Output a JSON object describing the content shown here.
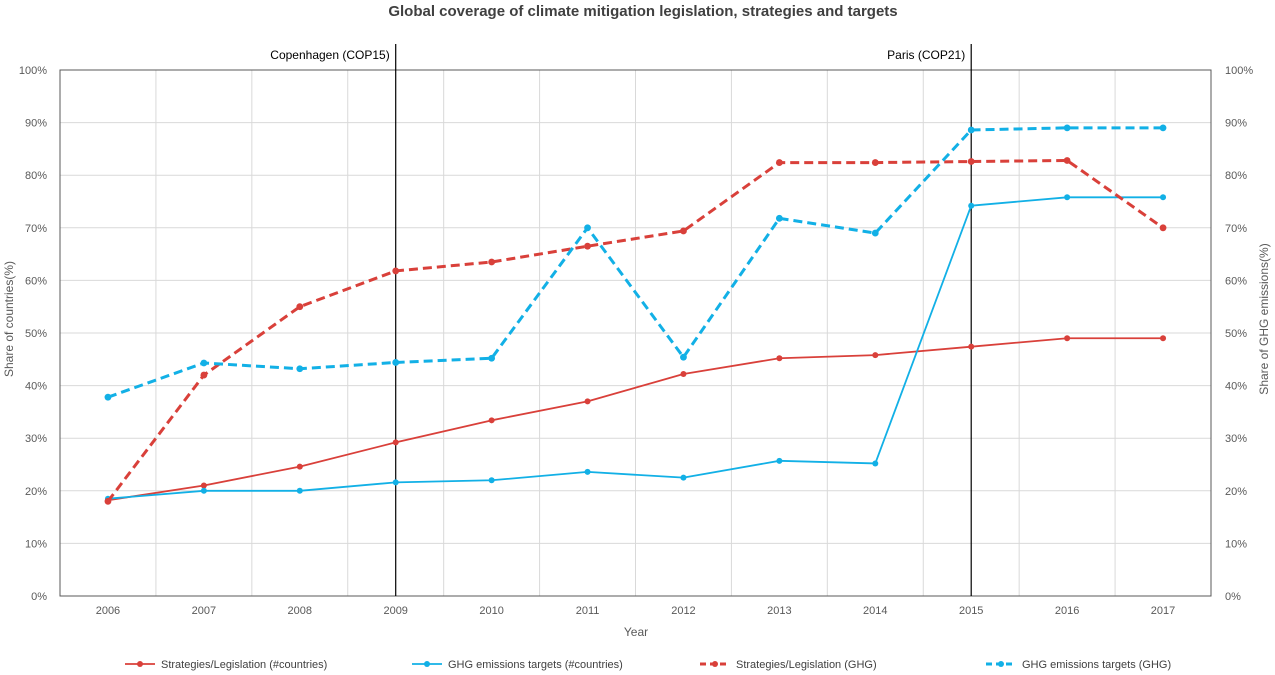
{
  "chart_data": {
    "type": "line",
    "title": "Global coverage of climate mitigation legislation, strategies and targets",
    "xlabel": "Year",
    "ylabel_left": "Share of countries(%)",
    "ylabel_right": "Share of GHG emissions(%)",
    "ylim": [
      0,
      100
    ],
    "yticks": [
      "0%",
      "10%",
      "20%",
      "30%",
      "40%",
      "50%",
      "60%",
      "70%",
      "80%",
      "90%",
      "100%"
    ],
    "categories": [
      "2006",
      "2007",
      "2008",
      "2009",
      "2010",
      "2011",
      "2012",
      "2013",
      "2014",
      "2015",
      "2016",
      "2017"
    ],
    "grid": true,
    "legend_position": "bottom",
    "series": [
      {
        "name": "Strategies/Legislation (#countries)",
        "axis": "left",
        "style": "solid",
        "color": "#d9403a",
        "values": [
          18.2,
          21.0,
          24.6,
          29.2,
          33.4,
          37.0,
          42.2,
          45.2,
          45.8,
          47.4,
          49.0,
          49.0
        ]
      },
      {
        "name": "GHG emissions targets (#countries)",
        "axis": "left",
        "style": "solid",
        "color": "#12b0e6",
        "values": [
          18.5,
          20.0,
          20.0,
          21.6,
          22.0,
          23.6,
          22.5,
          25.7,
          25.2,
          74.2,
          75.8,
          75.8
        ]
      },
      {
        "name": "Strategies/Legislation (GHG)",
        "axis": "right",
        "style": "dashed",
        "color": "#d9403a",
        "values": [
          18.0,
          42.0,
          55.0,
          61.8,
          63.5,
          66.5,
          69.4,
          82.4,
          82.4,
          82.6,
          82.8,
          70.0
        ]
      },
      {
        "name": "GHG emissions targets  (GHG)",
        "axis": "right",
        "style": "dashed",
        "color": "#12b0e6",
        "values": [
          37.8,
          44.3,
          43.2,
          44.4,
          45.2,
          70.0,
          45.4,
          71.8,
          69.0,
          88.6,
          89.0,
          89.0
        ]
      }
    ],
    "annotations": [
      {
        "label": "Copenhagen (COP15)",
        "x": "2009"
      },
      {
        "label": "Paris (COP21)",
        "x": "2015"
      }
    ]
  }
}
